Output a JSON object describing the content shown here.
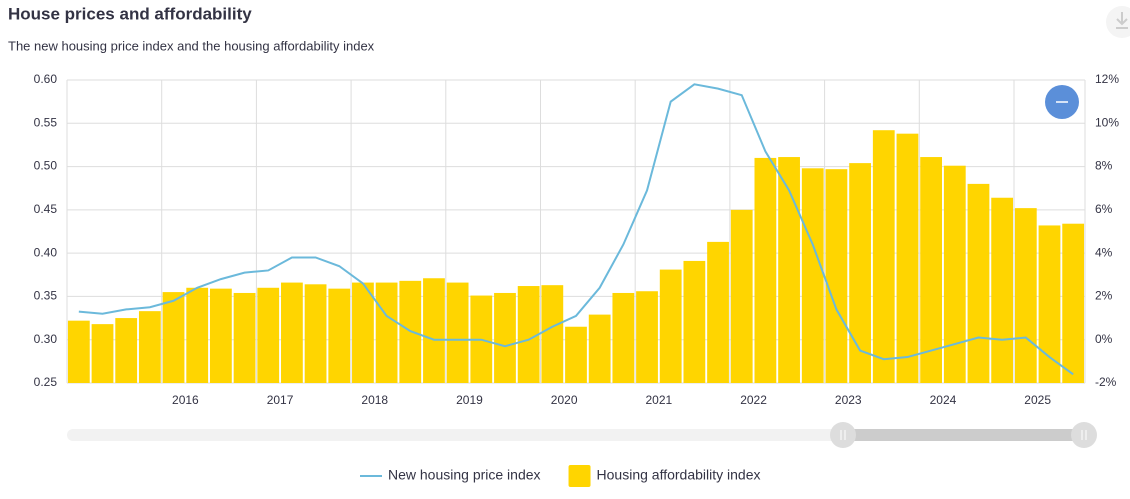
{
  "chart_data": {
    "type": "combo",
    "title": "House prices and affordability",
    "subtitle": "The new housing price index and the housing affordability index",
    "categories": [
      null,
      null,
      null,
      null,
      "2016",
      null,
      null,
      null,
      "2017",
      null,
      null,
      null,
      "2018",
      null,
      null,
      null,
      "2019",
      null,
      null,
      null,
      "2020",
      null,
      null,
      null,
      "2021",
      null,
      null,
      null,
      "2022",
      null,
      null,
      null,
      "2023",
      null,
      null,
      null,
      "2024",
      null,
      null,
      null,
      "2025",
      null,
      null
    ],
    "series": [
      {
        "name": "New housing price index",
        "type": "line",
        "axis": "y2",
        "color": "#6bb9db",
        "values": [
          1.3,
          1.2,
          1.4,
          1.5,
          1.8,
          2.4,
          2.8,
          3.1,
          3.2,
          3.8,
          3.8,
          3.4,
          2.6,
          1.1,
          0.4,
          0.0,
          0.0,
          0.0,
          -0.3,
          0.0,
          0.6,
          1.1,
          2.4,
          4.4,
          6.9,
          11.0,
          11.8,
          11.6,
          11.3,
          8.7,
          6.9,
          4.4,
          1.4,
          -0.5,
          -0.9,
          -0.8,
          -0.5,
          -0.2,
          0.1,
          0.0,
          0.1,
          -0.8,
          -1.6
        ]
      },
      {
        "name": "Housing affordability index",
        "type": "bar",
        "color": "#ffd500",
        "values": [
          0.322,
          0.318,
          0.325,
          0.333,
          0.355,
          0.36,
          0.359,
          0.354,
          0.36,
          0.366,
          0.364,
          0.359,
          0.366,
          0.366,
          0.368,
          0.371,
          0.366,
          0.351,
          0.354,
          0.362,
          0.363,
          0.315,
          0.329,
          0.354,
          0.356,
          0.381,
          0.391,
          0.413,
          0.45,
          0.51,
          0.511,
          0.498,
          0.497,
          0.504,
          0.542,
          0.538,
          0.511,
          0.501,
          0.48,
          0.464,
          0.452,
          0.432,
          0.434
        ]
      }
    ],
    "ylim": [
      0.25,
      0.6
    ],
    "yticks": [
      0.25,
      {
        "value": 0.3,
        "label": "0.30"
      },
      0.35,
      {
        "value": 0.4,
        "label": "0.40"
      },
      0.45,
      {
        "value": 0.5,
        "label": "0.50"
      },
      0.55,
      {
        "value": 0.6,
        "label": "0.60"
      }
    ],
    "y2lim": [
      -2,
      12
    ],
    "y2ticks": [
      {
        "value": -2,
        "label": "-2%"
      },
      {
        "value": 0,
        "label": "0%"
      },
      {
        "value": 2,
        "label": "2%"
      },
      {
        "value": 4,
        "label": "4%"
      },
      {
        "value": 6,
        "label": "6%"
      },
      {
        "value": 8,
        "label": "8%"
      },
      {
        "value": 10,
        "label": "10%"
      },
      {
        "value": 12,
        "label": "12%"
      }
    ],
    "grid": true
  }
}
